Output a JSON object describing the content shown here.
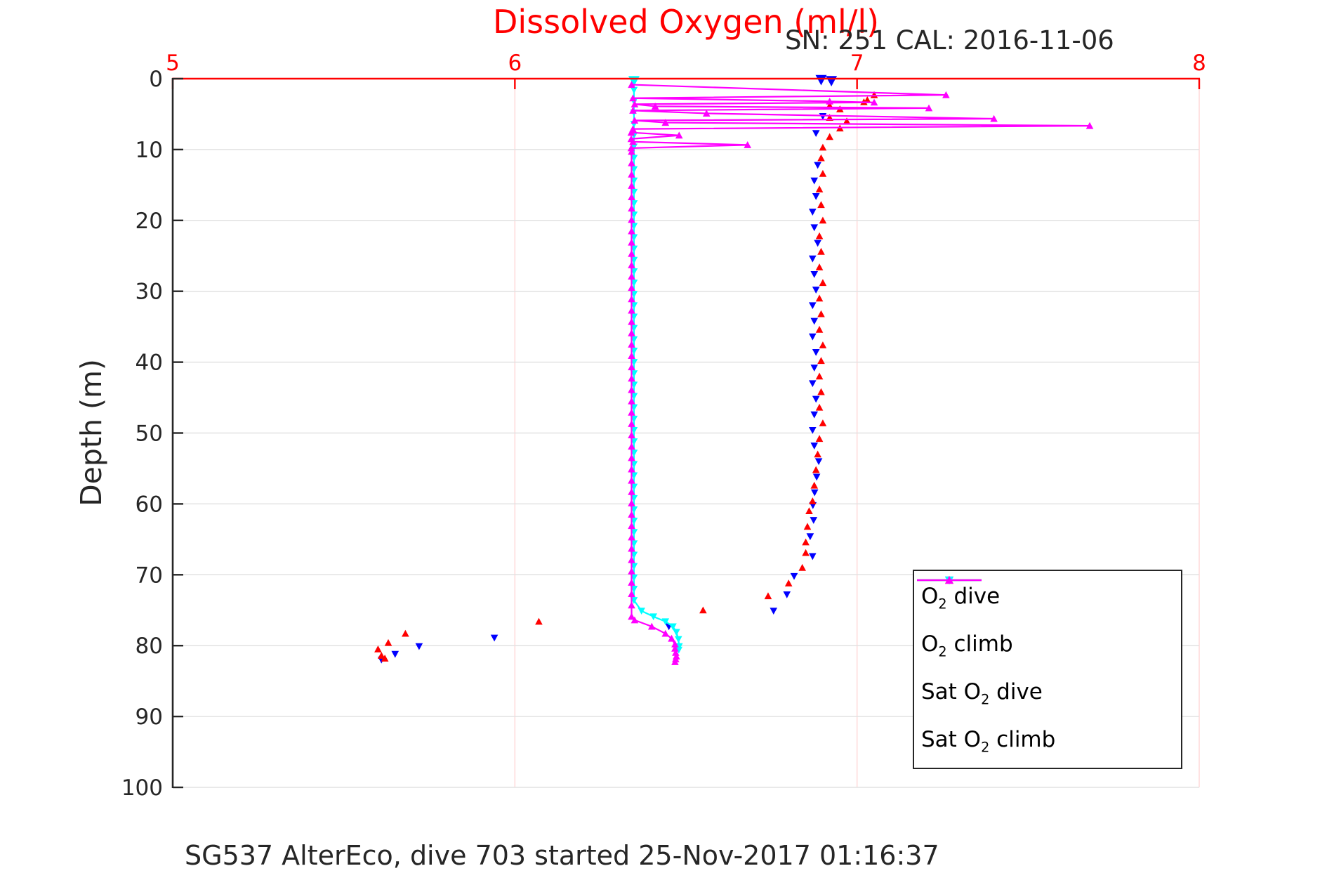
{
  "texts": {
    "title": "Dissolved Oxygen (ml/l)",
    "sn_cal": "SN: 251  CAL: 2016-11-06",
    "ylabel": "Depth (m)",
    "caption": "SG537 AlterEco, dive 703 started 25-Nov-2017 01:16:37"
  },
  "colors": {
    "x_axis": "#ff0000",
    "y_axis": "#262626",
    "grid_vertical": "#ffd9d9",
    "grid_horizontal": "#e2e2e2",
    "o2_dive": "#0000ff",
    "o2_climb": "#ff0000",
    "sat_o2_dive": "#00ffff",
    "sat_o2_climb": "#ff00ff",
    "legend_edge": "#262626",
    "text": "#262626"
  },
  "legend": {
    "items": [
      {
        "pre": "O",
        "sub": "2",
        "post": " dive",
        "color": "#0000ff",
        "marker": "down"
      },
      {
        "pre": "O",
        "sub": "2",
        "post": " climb",
        "color": "#ff0000",
        "marker": "up"
      },
      {
        "pre": "Sat O",
        "sub": "2",
        "post": " dive",
        "color": "#00ffff",
        "marker": "down"
      },
      {
        "pre": "Sat O",
        "sub": "2",
        "post": " climb",
        "color": "#ff00ff",
        "marker": "up"
      }
    ]
  },
  "chart_data": {
    "type": "line",
    "title": "Dissolved Oxygen (ml/l)",
    "xlabel": "Dissolved Oxygen (ml/l)",
    "ylabel": "Depth (m)",
    "xlim": [
      5,
      8
    ],
    "ylim": [
      0,
      100
    ],
    "y_inverted": true,
    "x_axis_position": "top",
    "grid": true,
    "legend_position": "inside lower right",
    "x_ticks": [
      5,
      6,
      7,
      8
    ],
    "y_ticks": [
      0,
      10,
      20,
      30,
      40,
      50,
      60,
      70,
      80,
      90,
      100
    ],
    "series": [
      {
        "name": "O2 dive",
        "color": "#0000ff",
        "marker": "down",
        "line": false,
        "big_points": 2,
        "points": [
          [
            6.895,
            0.15
          ],
          [
            6.925,
            0.3
          ],
          [
            6.9,
            5.3
          ],
          [
            6.88,
            7.7
          ],
          [
            6.885,
            12.2
          ],
          [
            6.875,
            14.4
          ],
          [
            6.88,
            16.6
          ],
          [
            6.87,
            18.8
          ],
          [
            6.875,
            21.0
          ],
          [
            6.885,
            23.2
          ],
          [
            6.87,
            25.4
          ],
          [
            6.875,
            27.6
          ],
          [
            6.88,
            29.8
          ],
          [
            6.87,
            32.0
          ],
          [
            6.875,
            34.2
          ],
          [
            6.87,
            36.4
          ],
          [
            6.88,
            38.6
          ],
          [
            6.875,
            40.8
          ],
          [
            6.87,
            43.0
          ],
          [
            6.88,
            45.2
          ],
          [
            6.875,
            47.4
          ],
          [
            6.87,
            49.6
          ],
          [
            6.875,
            51.8
          ],
          [
            6.888,
            54.0
          ],
          [
            6.882,
            56.2
          ],
          [
            6.876,
            58.4
          ],
          [
            6.871,
            60.2
          ],
          [
            6.873,
            62.3
          ],
          [
            6.863,
            64.6
          ],
          [
            6.87,
            67.4
          ],
          [
            6.816,
            70.2
          ],
          [
            6.795,
            72.8
          ],
          [
            6.756,
            75.1
          ],
          [
            6.45,
            77.3
          ],
          [
            5.94,
            78.9
          ],
          [
            5.72,
            80.1
          ],
          [
            5.65,
            81.2
          ],
          [
            5.61,
            82.0
          ]
        ]
      },
      {
        "name": "O2 climb",
        "color": "#ff0000",
        "marker": "up",
        "line": false,
        "big_points": 0,
        "points": [
          [
            7.05,
            2.3
          ],
          [
            7.03,
            3.0
          ],
          [
            7.02,
            3.3
          ],
          [
            6.92,
            3.8
          ],
          [
            6.95,
            4.3
          ],
          [
            6.92,
            5.5
          ],
          [
            6.97,
            6.0
          ],
          [
            6.95,
            7.0
          ],
          [
            6.92,
            8.2
          ],
          [
            6.9,
            9.7
          ],
          [
            6.895,
            11.2
          ],
          [
            6.9,
            13.4
          ],
          [
            6.89,
            15.6
          ],
          [
            6.895,
            17.8
          ],
          [
            6.9,
            20.0
          ],
          [
            6.89,
            22.2
          ],
          [
            6.895,
            24.4
          ],
          [
            6.89,
            26.6
          ],
          [
            6.9,
            28.8
          ],
          [
            6.89,
            31.0
          ],
          [
            6.895,
            33.2
          ],
          [
            6.89,
            35.4
          ],
          [
            6.9,
            37.6
          ],
          [
            6.895,
            39.8
          ],
          [
            6.89,
            42.0
          ],
          [
            6.895,
            44.2
          ],
          [
            6.89,
            46.4
          ],
          [
            6.9,
            48.6
          ],
          [
            6.89,
            50.8
          ],
          [
            6.885,
            53.0
          ],
          [
            6.88,
            55.2
          ],
          [
            6.875,
            57.4
          ],
          [
            6.87,
            59.6
          ],
          [
            6.86,
            61.0
          ],
          [
            6.855,
            63.2
          ],
          [
            6.85,
            65.4
          ],
          [
            6.85,
            66.9
          ],
          [
            6.84,
            69.0
          ],
          [
            6.8,
            71.2
          ],
          [
            6.74,
            73.0
          ],
          [
            6.55,
            75.0
          ],
          [
            6.07,
            76.6
          ],
          [
            5.68,
            78.3
          ],
          [
            5.63,
            79.6
          ],
          [
            5.6,
            80.5
          ],
          [
            5.61,
            81.4
          ],
          [
            5.62,
            81.8
          ]
        ]
      },
      {
        "name": "Sat O2 dive",
        "color": "#00ffff",
        "marker": "down",
        "line": true,
        "big_points": 1,
        "points": [
          [
            6.348,
            0.3
          ],
          [
            6.348,
            1.6
          ],
          [
            6.348,
            3.2
          ],
          [
            6.348,
            4.8
          ],
          [
            6.348,
            6.4
          ],
          [
            6.348,
            8.0
          ],
          [
            6.348,
            9.6
          ],
          [
            6.348,
            11.2
          ],
          [
            6.348,
            12.8
          ],
          [
            6.348,
            14.4
          ],
          [
            6.348,
            16.0
          ],
          [
            6.348,
            17.6
          ],
          [
            6.348,
            19.2
          ],
          [
            6.348,
            20.8
          ],
          [
            6.348,
            22.4
          ],
          [
            6.348,
            24.0
          ],
          [
            6.348,
            25.6
          ],
          [
            6.348,
            27.2
          ],
          [
            6.348,
            28.8
          ],
          [
            6.348,
            30.4
          ],
          [
            6.348,
            32.0
          ],
          [
            6.348,
            33.6
          ],
          [
            6.348,
            35.2
          ],
          [
            6.348,
            36.8
          ],
          [
            6.348,
            38.4
          ],
          [
            6.348,
            40.0
          ],
          [
            6.348,
            41.6
          ],
          [
            6.348,
            43.2
          ],
          [
            6.348,
            44.8
          ],
          [
            6.348,
            46.4
          ],
          [
            6.348,
            48.0
          ],
          [
            6.348,
            49.6
          ],
          [
            6.348,
            51.2
          ],
          [
            6.348,
            52.8
          ],
          [
            6.348,
            54.4
          ],
          [
            6.348,
            56.0
          ],
          [
            6.348,
            57.6
          ],
          [
            6.348,
            59.2
          ],
          [
            6.348,
            60.8
          ],
          [
            6.348,
            62.4
          ],
          [
            6.348,
            64.0
          ],
          [
            6.348,
            65.6
          ],
          [
            6.348,
            67.2
          ],
          [
            6.348,
            68.8
          ],
          [
            6.348,
            70.4
          ],
          [
            6.348,
            72.0
          ],
          [
            6.348,
            73.6
          ],
          [
            6.37,
            75.1
          ],
          [
            6.405,
            75.9
          ],
          [
            6.44,
            76.6
          ],
          [
            6.462,
            77.3
          ],
          [
            6.472,
            78.1
          ],
          [
            6.478,
            79.1
          ],
          [
            6.48,
            80.1
          ],
          [
            6.479,
            80.6
          ]
        ]
      },
      {
        "name": "Sat O2 climb",
        "color": "#ff00ff",
        "marker": "up",
        "line": true,
        "big_points": 0,
        "points": [
          [
            6.341,
            0.85
          ],
          [
            7.26,
            2.3
          ],
          [
            6.345,
            2.75
          ],
          [
            6.92,
            3.2
          ],
          [
            7.05,
            3.35
          ],
          [
            6.35,
            3.6
          ],
          [
            6.41,
            3.9
          ],
          [
            7.21,
            4.15
          ],
          [
            6.345,
            4.5
          ],
          [
            6.56,
            4.9
          ],
          [
            7.4,
            5.65
          ],
          [
            6.35,
            5.9
          ],
          [
            6.44,
            6.2
          ],
          [
            7.68,
            6.65
          ],
          [
            6.345,
            7.1
          ],
          [
            6.34,
            7.6
          ],
          [
            6.48,
            8.0
          ],
          [
            6.34,
            8.5
          ],
          [
            6.345,
            8.9
          ],
          [
            6.68,
            9.35
          ],
          [
            6.34,
            9.8
          ],
          [
            6.341,
            10.3
          ],
          [
            6.341,
            11.9
          ],
          [
            6.341,
            13.5
          ],
          [
            6.341,
            15.1
          ],
          [
            6.341,
            16.7
          ],
          [
            6.341,
            18.3
          ],
          [
            6.341,
            19.9
          ],
          [
            6.341,
            21.5
          ],
          [
            6.341,
            23.1
          ],
          [
            6.341,
            24.7
          ],
          [
            6.341,
            26.3
          ],
          [
            6.341,
            27.9
          ],
          [
            6.341,
            29.5
          ],
          [
            6.341,
            31.1
          ],
          [
            6.341,
            32.7
          ],
          [
            6.341,
            34.3
          ],
          [
            6.341,
            35.9
          ],
          [
            6.341,
            37.5
          ],
          [
            6.341,
            39.1
          ],
          [
            6.341,
            40.7
          ],
          [
            6.341,
            42.3
          ],
          [
            6.341,
            43.9
          ],
          [
            6.341,
            45.5
          ],
          [
            6.341,
            47.1
          ],
          [
            6.341,
            48.7
          ],
          [
            6.341,
            50.3
          ],
          [
            6.341,
            51.9
          ],
          [
            6.341,
            53.5
          ],
          [
            6.341,
            55.1
          ],
          [
            6.341,
            56.7
          ],
          [
            6.341,
            58.3
          ],
          [
            6.341,
            59.9
          ],
          [
            6.341,
            61.5
          ],
          [
            6.341,
            63.1
          ],
          [
            6.341,
            64.7
          ],
          [
            6.341,
            66.3
          ],
          [
            6.341,
            67.9
          ],
          [
            6.341,
            69.5
          ],
          [
            6.341,
            71.1
          ],
          [
            6.341,
            72.7
          ],
          [
            6.341,
            74.3
          ],
          [
            6.341,
            75.9
          ],
          [
            6.35,
            76.4
          ],
          [
            6.4,
            77.3
          ],
          [
            6.44,
            78.3
          ],
          [
            6.458,
            79.0
          ],
          [
            6.468,
            79.8
          ],
          [
            6.468,
            80.4
          ],
          [
            6.47,
            81.0
          ],
          [
            6.472,
            81.5
          ],
          [
            6.47,
            81.9
          ],
          [
            6.468,
            82.3
          ]
        ]
      }
    ]
  }
}
